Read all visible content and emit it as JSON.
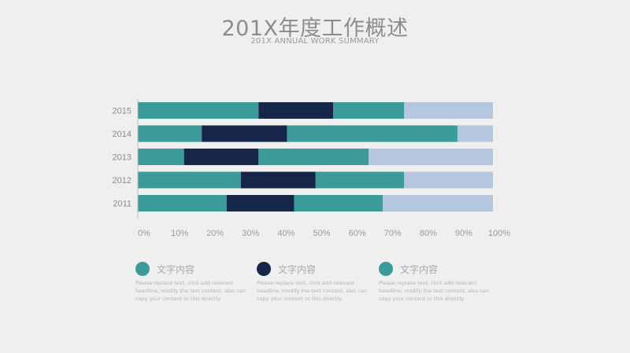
{
  "header": {
    "title": "201X年度工作概述",
    "subtitle": "201X ANNUAL WORK SUMMARY"
  },
  "colors": {
    "teal": "#3a9b98",
    "navy": "#15264a",
    "lightblue": "#b5c6df",
    "background": "#efefef"
  },
  "chart_data": {
    "type": "bar",
    "orientation": "horizontal",
    "stacked": true,
    "categories": [
      "2015",
      "2014",
      "2013",
      "2012",
      "2011"
    ],
    "series": [
      {
        "color": "#3a9b98",
        "values": [
          34,
          18,
          13,
          29,
          25
        ]
      },
      {
        "color": "#15264a",
        "values": [
          21,
          24,
          21,
          21,
          19
        ]
      },
      {
        "color": "#3a9b98",
        "values": [
          20,
          48,
          31,
          25,
          25
        ]
      },
      {
        "color": "#b5c6df",
        "values": [
          25,
          10,
          35,
          25,
          31
        ]
      }
    ],
    "xticks": [
      "0%",
      "10%",
      "20%",
      "30%",
      "40%",
      "50%",
      "60%",
      "70%",
      "80%",
      "90%",
      "100%"
    ],
    "xlim": [
      0,
      100
    ],
    "grid": false
  },
  "legend": [
    {
      "title": "文字内容",
      "color": "#3a9b98",
      "desc": "Please replace text, click add relevant headline, modify the text content, also can copy your content to this directly."
    },
    {
      "title": "文字内容",
      "color": "#15264a",
      "desc": "Please replace text, click add relevant headline, modify the text content, also can copy your content to this directly."
    },
    {
      "title": "文字内容",
      "color": "#3a9b98",
      "desc": "Please replace text, click add relevant headline, modify the text content, also can copy your content to this directly."
    }
  ]
}
